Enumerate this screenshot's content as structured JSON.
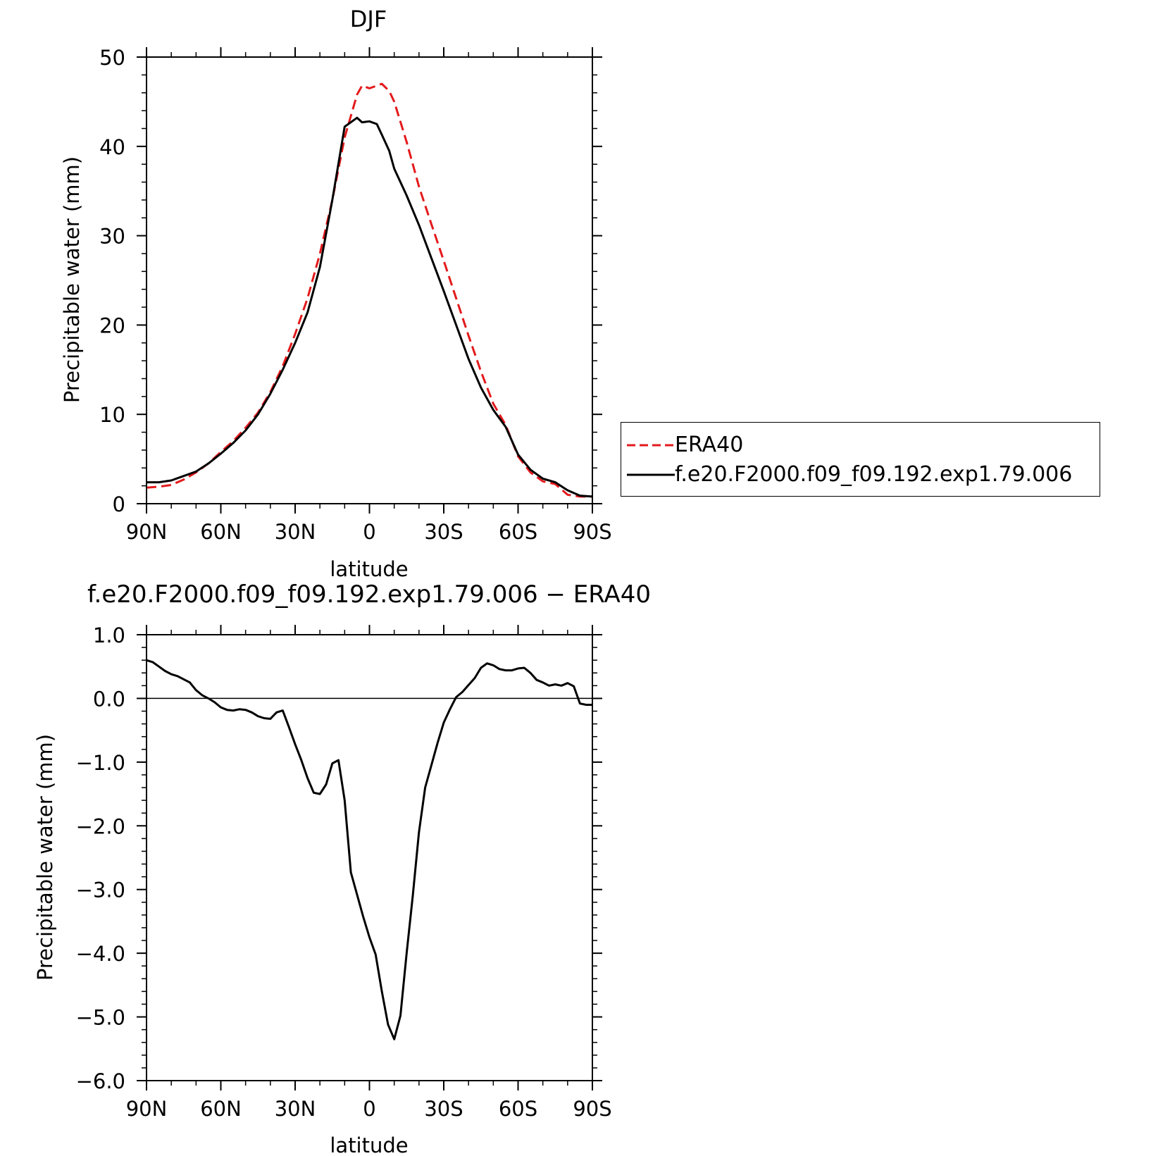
{
  "chart_data": [
    {
      "type": "line",
      "title": "DJF",
      "xlabel": "latitude",
      "ylabel": "Precipitable water (mm)",
      "xlim": [
        90,
        -90
      ],
      "ylim": [
        0,
        50
      ],
      "xticks": [
        {
          "value": 90,
          "label": "90N"
        },
        {
          "value": 60,
          "label": "60N"
        },
        {
          "value": 30,
          "label": "30N"
        },
        {
          "value": 0,
          "label": "0"
        },
        {
          "value": -30,
          "label": "30S"
        },
        {
          "value": -60,
          "label": "60S"
        },
        {
          "value": -90,
          "label": "90S"
        }
      ],
      "yticks": [
        {
          "value": 0,
          "label": "0"
        },
        {
          "value": 10,
          "label": "10"
        },
        {
          "value": 20,
          "label": "20"
        },
        {
          "value": 30,
          "label": "30"
        },
        {
          "value": 40,
          "label": "40"
        },
        {
          "value": 50,
          "label": "50"
        }
      ],
      "grid": false,
      "legend_position": "right",
      "series": [
        {
          "name": "ERA40",
          "color": "#e31a1c",
          "dash": "dashed",
          "x": [
            90,
            85,
            80,
            75,
            70,
            65,
            60,
            55,
            50,
            45,
            40,
            35,
            30,
            25,
            20,
            15,
            10,
            5,
            3,
            0,
            -3,
            -5,
            -8,
            -10,
            -15,
            -20,
            -25,
            -30,
            -35,
            -40,
            -45,
            -50,
            -55,
            -60,
            -65,
            -70,
            -75,
            -80,
            -85,
            -90
          ],
          "values": [
            1.8,
            1.9,
            2.1,
            2.7,
            3.5,
            4.5,
            5.8,
            7.0,
            8.5,
            10.2,
            12.5,
            15.4,
            19.0,
            23.0,
            28.0,
            34.0,
            41.0,
            45.8,
            46.8,
            46.5,
            46.8,
            47.0,
            46.2,
            45.0,
            40.5,
            35.5,
            31.3,
            27.2,
            23.0,
            18.8,
            14.8,
            11.2,
            8.8,
            5.3,
            3.5,
            2.5,
            2.2,
            1.0,
            0.8,
            0.8
          ]
        },
        {
          "name": "f.e20.F2000.f09_f09.192.exp1.79.006",
          "color": "#000000",
          "dash": "solid",
          "x": [
            90,
            85,
            80,
            75,
            70,
            65,
            60,
            55,
            50,
            45,
            40,
            35,
            30,
            25,
            20,
            15,
            10,
            5,
            3,
            0,
            -3,
            -5,
            -8,
            -10,
            -15,
            -20,
            -25,
            -30,
            -35,
            -40,
            -45,
            -50,
            -55,
            -60,
            -65,
            -70,
            -75,
            -80,
            -85,
            -90
          ],
          "values": [
            2.4,
            2.4,
            2.6,
            3.1,
            3.6,
            4.5,
            5.6,
            6.8,
            8.2,
            10.0,
            12.3,
            15.0,
            18.0,
            21.4,
            26.5,
            34.0,
            42.2,
            43.2,
            42.7,
            42.8,
            42.5,
            41.3,
            39.5,
            37.5,
            34.5,
            31.2,
            27.5,
            23.8,
            20.0,
            16.2,
            13.0,
            10.5,
            8.6,
            5.5,
            3.8,
            2.8,
            2.4,
            1.5,
            0.9,
            0.8
          ]
        }
      ]
    },
    {
      "type": "line",
      "title": "f.e20.F2000.f09_f09.192.exp1.79.006 − ERA40",
      "xlabel": "latitude",
      "ylabel": "Precipitable water (mm)",
      "xlim": [
        90,
        -90
      ],
      "ylim": [
        -6.0,
        1.0
      ],
      "xticks": [
        {
          "value": 90,
          "label": "90N"
        },
        {
          "value": 60,
          "label": "60N"
        },
        {
          "value": 30,
          "label": "30N"
        },
        {
          "value": 0,
          "label": "0"
        },
        {
          "value": -30,
          "label": "30S"
        },
        {
          "value": -60,
          "label": "60S"
        },
        {
          "value": -90,
          "label": "90S"
        }
      ],
      "yticks": [
        {
          "value": 1.0,
          "label": "1.0"
        },
        {
          "value": 0.0,
          "label": "0.0"
        },
        {
          "value": -1.0,
          "label": "−1.0"
        },
        {
          "value": -2.0,
          "label": "−2.0"
        },
        {
          "value": -3.0,
          "label": "−3.0"
        },
        {
          "value": -4.0,
          "label": "−4.0"
        },
        {
          "value": -5.0,
          "label": "−5.0"
        },
        {
          "value": -6.0,
          "label": "−6.0"
        }
      ],
      "grid": false,
      "series": [
        {
          "color": "#000000",
          "dash": "solid",
          "x": [
            90,
            87.5,
            85,
            82.5,
            80,
            77.5,
            75,
            72.5,
            70,
            67.5,
            65,
            62.5,
            60,
            57.5,
            55,
            52.5,
            50,
            47.5,
            45,
            42.5,
            40,
            37.5,
            35,
            32.5,
            30,
            27.5,
            25,
            22.5,
            20,
            17.5,
            15,
            12.5,
            10,
            7.5,
            5,
            2.5,
            0,
            -2.5,
            -5,
            -7.5,
            -10,
            -12.5,
            -15,
            -17.5,
            -20,
            -22.5,
            -25,
            -27.5,
            -30,
            -32.5,
            -35,
            -37.5,
            -40,
            -42.5,
            -45,
            -47.5,
            -50,
            -52.5,
            -55,
            -57.5,
            -60,
            -62.5,
            -65,
            -67.5,
            -70,
            -72.5,
            -75,
            -77.5,
            -80,
            -82.5,
            -85,
            -87.5,
            -90
          ],
          "values": [
            0.6,
            0.57,
            0.5,
            0.43,
            0.38,
            0.35,
            0.3,
            0.25,
            0.13,
            0.05,
            0.0,
            -0.06,
            -0.14,
            -0.18,
            -0.19,
            -0.17,
            -0.18,
            -0.22,
            -0.28,
            -0.31,
            -0.32,
            -0.22,
            -0.19,
            -0.45,
            -0.72,
            -0.97,
            -1.25,
            -1.48,
            -1.5,
            -1.35,
            -1.02,
            -0.97,
            -1.6,
            -2.73,
            -3.08,
            -3.43,
            -3.75,
            -4.02,
            -4.6,
            -5.12,
            -5.35,
            -4.98,
            -4.0,
            -3.1,
            -2.1,
            -1.4,
            -1.05,
            -0.7,
            -0.38,
            -0.17,
            0.02,
            0.1,
            0.21,
            0.32,
            0.48,
            0.55,
            0.52,
            0.46,
            0.44,
            0.44,
            0.47,
            0.48,
            0.4,
            0.29,
            0.25,
            0.2,
            0.22,
            0.2,
            0.24,
            0.19,
            -0.08,
            -0.1,
            -0.1
          ]
        }
      ]
    }
  ]
}
